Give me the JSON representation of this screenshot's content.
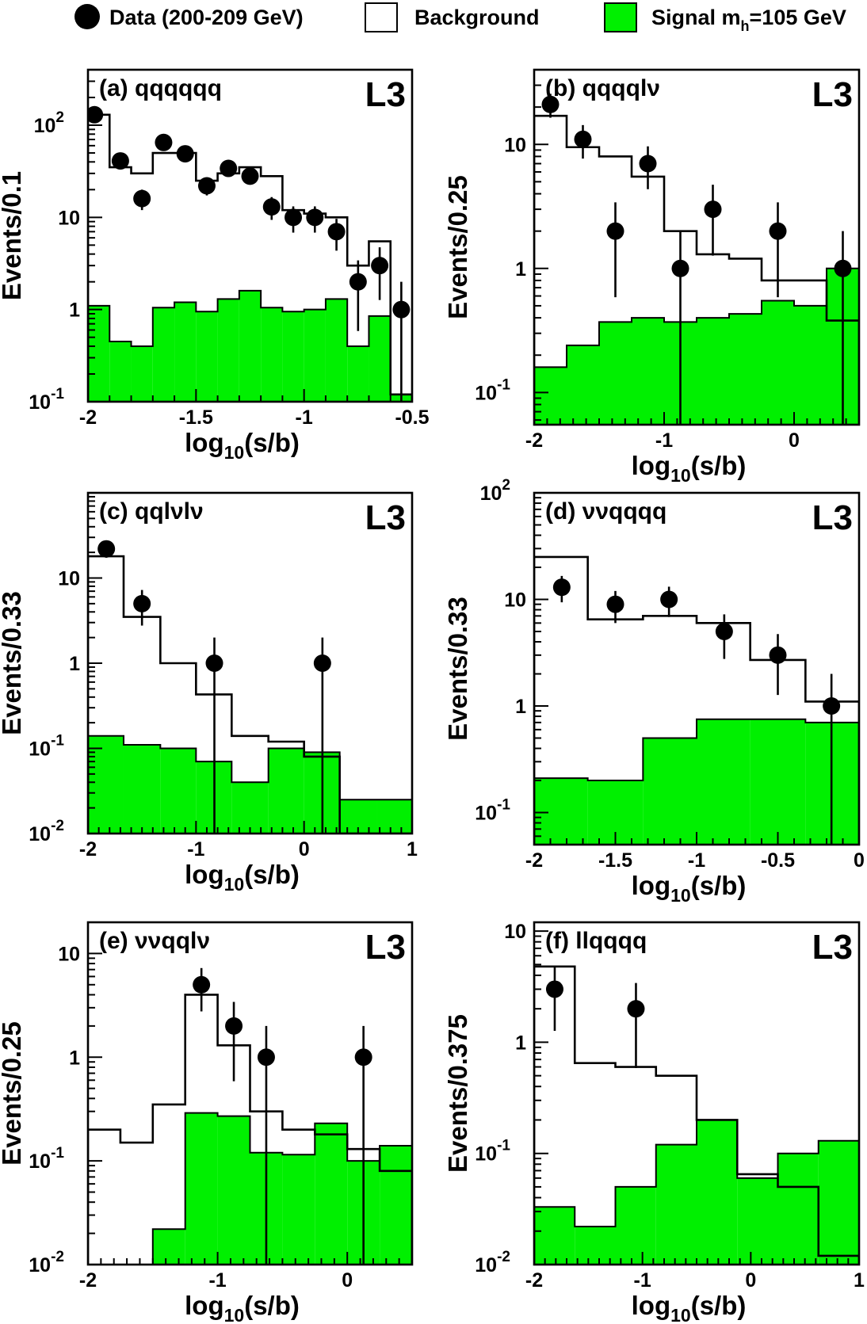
{
  "legend": {
    "items": [
      {
        "label": "Data (200-209 GeV)",
        "marker": "circle"
      },
      {
        "label": "Background",
        "marker": "open-box"
      },
      {
        "label": "Signal m",
        "sub": "h",
        "suffix": "=105 GeV",
        "marker": "filled-box"
      }
    ]
  },
  "colors": {
    "signal": "#00f000",
    "background_line": "#000000",
    "data": "#000000"
  },
  "chart_data": [
    {
      "type": "bar",
      "panel": "a",
      "title": "(a) qqqqqq",
      "badge": "L3",
      "xlabel": "log10(s/b)",
      "ylabel": "Events/0.1",
      "log_y": true,
      "xlim": [
        -2.0,
        -0.5
      ],
      "ylim": [
        0.1,
        400
      ],
      "xticks": [
        {
          "v": -2,
          "label": "-2"
        },
        {
          "v": -1.5,
          "label": "-1.5"
        },
        {
          "v": -1,
          "label": "-1"
        },
        {
          "v": -0.5,
          "label": "-0.5"
        }
      ],
      "yticks": [
        {
          "v": 0.1,
          "label": "10",
          "exp": "-1"
        },
        {
          "v": 1,
          "label": "1"
        },
        {
          "v": 10,
          "label": "10"
        },
        {
          "v": 100,
          "label": "10",
          "exp": "2"
        }
      ],
      "bin_edges": [
        -2.0,
        -1.9,
        -1.8,
        -1.7,
        -1.6,
        -1.5,
        -1.4,
        -1.3,
        -1.2,
        -1.1,
        -1.0,
        -0.9,
        -0.8,
        -0.7,
        -0.6,
        -0.5
      ],
      "background": [
        130,
        35,
        30,
        50,
        50,
        25,
        30,
        35,
        28,
        12,
        11,
        10,
        3,
        5.5,
        0.12
      ],
      "signal": [
        1.1,
        0.45,
        0.4,
        1.05,
        1.2,
        0.95,
        1.3,
        1.6,
        1.05,
        0.95,
        1.0,
        1.3,
        0.4,
        0.85,
        0.12
      ],
      "data": [
        {
          "x": -1.97,
          "y": 130
        },
        {
          "x": -1.85,
          "y": 41
        },
        {
          "x": -1.75,
          "y": 16
        },
        {
          "x": -1.65,
          "y": 65
        },
        {
          "x": -1.55,
          "y": 49
        },
        {
          "x": -1.45,
          "y": 22
        },
        {
          "x": -1.35,
          "y": 34
        },
        {
          "x": -1.25,
          "y": 28
        },
        {
          "x": -1.15,
          "y": 13
        },
        {
          "x": -1.05,
          "y": 10
        },
        {
          "x": -0.95,
          "y": 10
        },
        {
          "x": -0.85,
          "y": 7
        },
        {
          "x": -0.75,
          "y": 2
        },
        {
          "x": -0.65,
          "y": 3
        },
        {
          "x": -0.55,
          "y": 1
        }
      ]
    },
    {
      "type": "bar",
      "panel": "b",
      "title": "(b) qqqqlν",
      "badge": "L3",
      "xlabel": "log10(s/b)",
      "ylabel": "Events/0.25",
      "log_y": true,
      "xlim": [
        -2.0,
        0.5
      ],
      "ylim": [
        0.055,
        40
      ],
      "xticks": [
        {
          "v": -2,
          "label": "-2"
        },
        {
          "v": -1,
          "label": "-1"
        },
        {
          "v": 0,
          "label": "0"
        }
      ],
      "yticks": [
        {
          "v": 0.1,
          "label": "10",
          "exp": "-1"
        },
        {
          "v": 1,
          "label": "1"
        },
        {
          "v": 10,
          "label": "10"
        }
      ],
      "bin_edges": [
        -2.0,
        -1.75,
        -1.5,
        -1.25,
        -1.0,
        -0.75,
        -0.5,
        -0.25,
        0.0,
        0.25,
        0.5
      ],
      "background": [
        17,
        9.5,
        8,
        5.5,
        2,
        1.3,
        1.2,
        0.8,
        0.8,
        0.38
      ],
      "signal": [
        0.16,
        0.24,
        0.37,
        0.4,
        0.37,
        0.4,
        0.43,
        0.55,
        0.5,
        1.0
      ],
      "data": [
        {
          "x": -1.875,
          "y": 21
        },
        {
          "x": -1.625,
          "y": 11
        },
        {
          "x": -1.375,
          "y": 2
        },
        {
          "x": -1.125,
          "y": 7
        },
        {
          "x": -0.875,
          "y": 1
        },
        {
          "x": -0.625,
          "y": 3
        },
        {
          "x": -0.125,
          "y": 2
        },
        {
          "x": 0.375,
          "y": 1
        }
      ]
    },
    {
      "type": "bar",
      "panel": "c",
      "title": "(c) qqlνlν",
      "badge": "L3",
      "xlabel": "log10(s/b)",
      "ylabel": "Events/0.33",
      "log_y": true,
      "xlim": [
        -2.0,
        1.0
      ],
      "ylim": [
        0.01,
        100
      ],
      "xticks": [
        {
          "v": -2,
          "label": "-2"
        },
        {
          "v": -1,
          "label": "-1"
        },
        {
          "v": 0,
          "label": "0"
        },
        {
          "v": 1,
          "label": "1"
        }
      ],
      "yticks": [
        {
          "v": 0.01,
          "label": "10",
          "exp": "-2"
        },
        {
          "v": 0.1,
          "label": "10",
          "exp": "-1"
        },
        {
          "v": 1,
          "label": "1"
        },
        {
          "v": 10,
          "label": "10"
        }
      ],
      "bin_edges": [
        -2.0,
        -1.67,
        -1.33,
        -1.0,
        -0.67,
        -0.33,
        0.0,
        0.33,
        0.67,
        1.0
      ],
      "background": [
        18,
        3.5,
        1.0,
        0.43,
        0.14,
        0.12,
        0.08,
        0.0,
        0.0
      ],
      "signal": [
        0.14,
        0.11,
        0.1,
        0.07,
        0.04,
        0.1,
        0.09,
        0.025,
        0.025
      ],
      "data": [
        {
          "x": -1.83,
          "y": 22
        },
        {
          "x": -1.5,
          "y": 5
        },
        {
          "x": -0.83,
          "y": 1
        },
        {
          "x": 0.17,
          "y": 1
        }
      ]
    },
    {
      "type": "bar",
      "panel": "d",
      "title": "(d) ννqqqq",
      "badge": "L3",
      "xlabel": "log10(s/b)",
      "ylabel": "Events/0.33",
      "log_y": true,
      "xlim": [
        -2.0,
        0.0
      ],
      "ylim": [
        0.05,
        100
      ],
      "xticks": [
        {
          "v": -2,
          "label": "-2"
        },
        {
          "v": -1.5,
          "label": "-1.5"
        },
        {
          "v": -1,
          "label": "-1"
        },
        {
          "v": -0.5,
          "label": "-0.5"
        },
        {
          "v": 0,
          "label": "0"
        }
      ],
      "yticks": [
        {
          "v": 0.1,
          "label": "10",
          "exp": "-1"
        },
        {
          "v": 1,
          "label": "1"
        },
        {
          "v": 10,
          "label": "10"
        },
        {
          "v": 100,
          "label": "10",
          "exp": "2"
        }
      ],
      "bin_edges": [
        -2.0,
        -1.67,
        -1.33,
        -1.0,
        -0.67,
        -0.33,
        0.0
      ],
      "background": [
        25,
        6.5,
        7,
        6,
        2.7,
        1.1
      ],
      "signal": [
        0.21,
        0.2,
        0.5,
        0.75,
        0.75,
        0.7
      ],
      "data": [
        {
          "x": -1.83,
          "y": 13
        },
        {
          "x": -1.5,
          "y": 9
        },
        {
          "x": -1.17,
          "y": 10
        },
        {
          "x": -0.83,
          "y": 5
        },
        {
          "x": -0.5,
          "y": 3
        },
        {
          "x": -0.17,
          "y": 1
        }
      ]
    },
    {
      "type": "bar",
      "panel": "e",
      "title": "(e) ννqqlν",
      "badge": "L3",
      "xlabel": "log10(s/b)",
      "ylabel": "Events/0.25",
      "log_y": true,
      "xlim": [
        -2.0,
        0.5
      ],
      "ylim": [
        0.01,
        20
      ],
      "xticks": [
        {
          "v": -2,
          "label": "-2"
        },
        {
          "v": -1,
          "label": "-1"
        },
        {
          "v": 0,
          "label": "0"
        }
      ],
      "yticks": [
        {
          "v": 0.01,
          "label": "10",
          "exp": "-2"
        },
        {
          "v": 0.1,
          "label": "10",
          "exp": "-1"
        },
        {
          "v": 1,
          "label": "1"
        },
        {
          "v": 10,
          "label": "10"
        }
      ],
      "bin_edges": [
        -2.0,
        -1.75,
        -1.5,
        -1.25,
        -1.0,
        -0.75,
        -0.5,
        -0.25,
        0.0,
        0.25,
        0.5
      ],
      "background": [
        0.2,
        0.15,
        0.35,
        4.0,
        1.3,
        0.3,
        0.2,
        0.18,
        0.13,
        0.08
      ],
      "signal": [
        0.0,
        0.0,
        0.022,
        0.29,
        0.27,
        0.12,
        0.115,
        0.23,
        0.1,
        0.14
      ],
      "data": [
        {
          "x": -1.125,
          "y": 5
        },
        {
          "x": -0.875,
          "y": 2
        },
        {
          "x": -0.625,
          "y": 1
        },
        {
          "x": 0.125,
          "y": 1
        }
      ]
    },
    {
      "type": "bar",
      "panel": "f",
      "title": "(f) llqqqq",
      "badge": "L3",
      "xlabel": "log10(s/b)",
      "ylabel": "Events/0.375",
      "log_y": true,
      "xlim": [
        -2.0,
        1.0
      ],
      "ylim": [
        0.01,
        12
      ],
      "xticks": [
        {
          "v": -2,
          "label": "-2"
        },
        {
          "v": -1,
          "label": "-1"
        },
        {
          "v": 0,
          "label": "0"
        },
        {
          "v": 1,
          "label": "1"
        }
      ],
      "yticks": [
        {
          "v": 0.01,
          "label": "10",
          "exp": "-2"
        },
        {
          "v": 0.1,
          "label": "10",
          "exp": "-1"
        },
        {
          "v": 1,
          "label": "1"
        },
        {
          "v": 10,
          "label": "10"
        }
      ],
      "bin_edges": [
        -2.0,
        -1.625,
        -1.25,
        -0.875,
        -0.5,
        -0.125,
        0.25,
        0.625,
        1.0
      ],
      "background": [
        4.8,
        0.65,
        0.6,
        0.5,
        0.2,
        0.065,
        0.05,
        0.012
      ],
      "signal": [
        0.033,
        0.022,
        0.05,
        0.12,
        0.2,
        0.06,
        0.1,
        0.13
      ],
      "data": [
        {
          "x": -1.81,
          "y": 3
        },
        {
          "x": -1.06,
          "y": 2
        }
      ]
    }
  ]
}
